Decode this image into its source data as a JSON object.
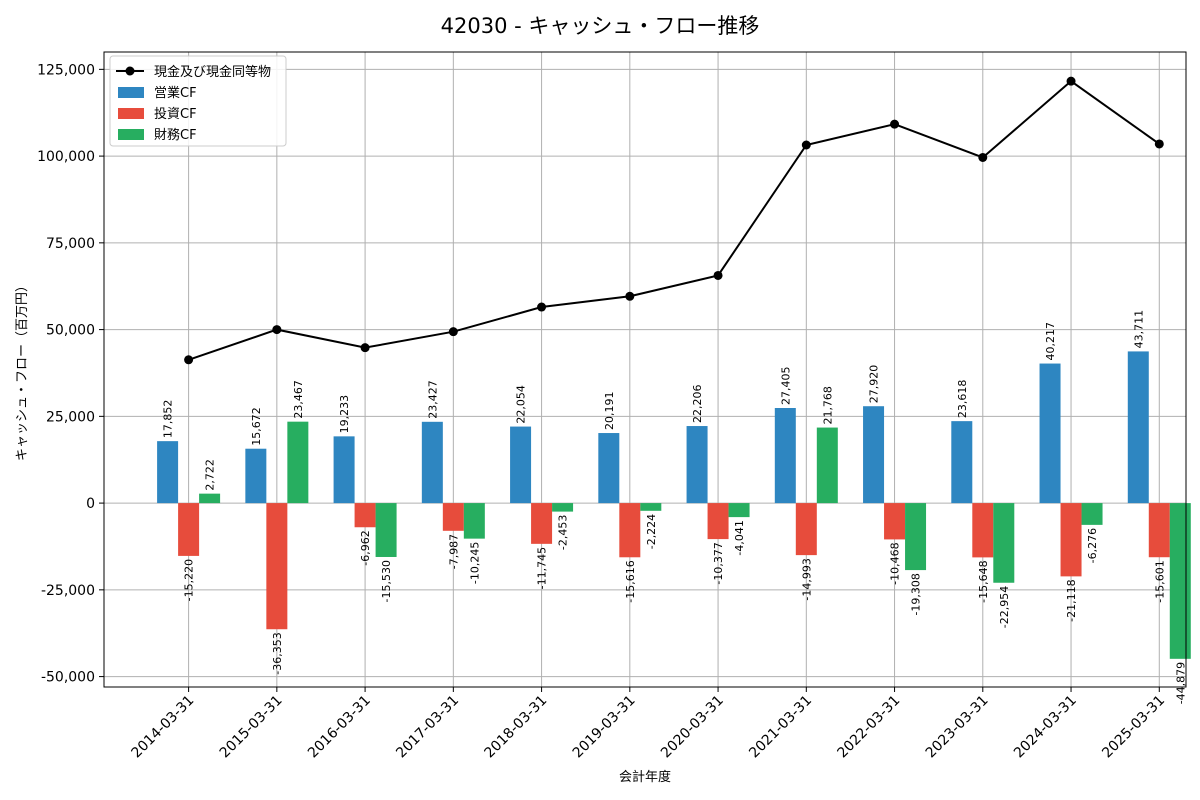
{
  "chart_data": {
    "type": "bar",
    "title": "42030 - キャッシュ・フロー推移",
    "xlabel": "会計年度",
    "ylabel": "キャッシュ・フロー（百万円）",
    "ylim": [
      -53000,
      130000
    ],
    "yticks": [
      -50000,
      -25000,
      0,
      25000,
      50000,
      75000,
      100000,
      125000
    ],
    "ytick_labels": [
      "-50,000",
      "-25,000",
      "0",
      "25,000",
      "50,000",
      "75,000",
      "100,000",
      "125,000"
    ],
    "grid": true,
    "legend_position": "top-left",
    "categories": [
      "2014-03-31",
      "2015-03-31",
      "2016-03-31",
      "2017-03-31",
      "2018-03-31",
      "2019-03-31",
      "2020-03-31",
      "2021-03-31",
      "2022-03-31",
      "2023-03-31",
      "2024-03-31",
      "2025-03-31"
    ],
    "line_series": {
      "name": "現金及び現金同等物",
      "color": "#000000",
      "values": [
        41300,
        50000,
        44800,
        49400,
        56500,
        59600,
        65600,
        103200,
        109200,
        99600,
        121600,
        103500
      ]
    },
    "series": [
      {
        "name": "営業CF",
        "color": "#2e86c1",
        "values": [
          17852,
          15672,
          19233,
          23427,
          22054,
          20191,
          22206,
          27405,
          27920,
          23618,
          40217,
          43711
        ],
        "labels": [
          "17,852",
          "15,672",
          "19,233",
          "23,427",
          "22,054",
          "20,191",
          "22,206",
          "27,405",
          "27,920",
          "23,618",
          "40,217",
          "43,711"
        ]
      },
      {
        "name": "投資CF",
        "color": "#e74c3c",
        "values": [
          -15220,
          -36353,
          -6962,
          -7987,
          -11745,
          -15616,
          -10377,
          -14993,
          -10468,
          -15648,
          -21118,
          -15601
        ],
        "labels": [
          "-15,220",
          "-36,353",
          "-6,962",
          "-7,987",
          "-11,745",
          "-15,616",
          "-10,377",
          "-14,993",
          "-10,468",
          "-15,648",
          "-21,118",
          "-15,601"
        ]
      },
      {
        "name": "財務CF",
        "color": "#27ae60",
        "values": [
          2722,
          23467,
          -15530,
          -10245,
          -2453,
          -2224,
          -4041,
          21768,
          -19308,
          -22954,
          -6276,
          -44879
        ],
        "labels": [
          "2,722",
          "23,467",
          "-15,530",
          "-10,245",
          "-2,453",
          "-2,224",
          "-4,041",
          "21,768",
          "-19,308",
          "-22,954",
          "-6,276",
          "-44,879"
        ]
      }
    ]
  }
}
